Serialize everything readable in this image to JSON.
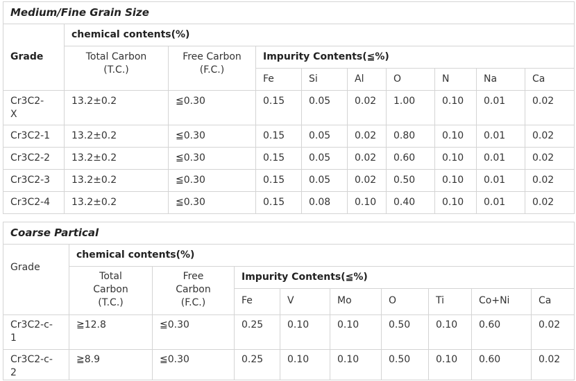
{
  "table1": {
    "title": "Medium/Fine Grain Size",
    "grade_header": "Grade",
    "chem_header": "chemical contents(%)",
    "tc_header": "Total Carbon\n(T.C.)",
    "fc_header": "Free Carbon\n(F.C.)",
    "impurity_header": "Impurity Contents(≦%)",
    "elements": [
      "Fe",
      "Si",
      "Al",
      "O",
      "N",
      "Na",
      "Ca"
    ],
    "rows": [
      {
        "grade": "Cr3C2-\nX",
        "tc": "13.2±0.2",
        "fc": "≦0.30",
        "vals": [
          "0.15",
          "0.05",
          "0.02",
          "1.00",
          "0.10",
          "0.01",
          "0.02"
        ]
      },
      {
        "grade": "Cr3C2-1",
        "tc": "13.2±0.2",
        "fc": "≦0.30",
        "vals": [
          "0.15",
          "0.05",
          "0.02",
          "0.80",
          "0.10",
          "0.01",
          "0.02"
        ]
      },
      {
        "grade": "Cr3C2-2",
        "tc": "13.2±0.2",
        "fc": "≦0.30",
        "vals": [
          "0.15",
          "0.05",
          "0.02",
          "0.60",
          "0.10",
          "0.01",
          "0.02"
        ]
      },
      {
        "grade": "Cr3C2-3",
        "tc": "13.2±0.2",
        "fc": "≦0.30",
        "vals": [
          "0.15",
          "0.05",
          "0.02",
          "0.50",
          "0.10",
          "0.01",
          "0.02"
        ]
      },
      {
        "grade": "Cr3C2-4",
        "tc": "13.2±0.2",
        "fc": "≦0.30",
        "vals": [
          "0.15",
          "0.08",
          "0.10",
          "0.40",
          "0.10",
          "0.01",
          "0.02"
        ]
      }
    ]
  },
  "table2": {
    "title": "Coarse Partical",
    "grade_header": "Grade",
    "chem_header": "chemical contents(%)",
    "tc_header": "Total\nCarbon\n(T.C.)",
    "fc_header": "Free\nCarbon\n(F.C.)",
    "impurity_header": "Impurity Contents(≦%)",
    "elements": [
      "Fe",
      "V",
      "Mo",
      "O",
      "Ti",
      "Co+Ni",
      "Ca"
    ],
    "rows": [
      {
        "grade": "Cr3C2-c-\n1",
        "tc": "≧12.8",
        "fc": "≦0.30",
        "vals": [
          "0.25",
          "0.10",
          "0.10",
          "0.50",
          "0.10",
          "0.60",
          "0.02"
        ]
      },
      {
        "grade": "Cr3C2-c-\n2",
        "tc": "≧8.9",
        "fc": "≦0.30",
        "vals": [
          "0.25",
          "0.10",
          "0.10",
          "0.50",
          "0.10",
          "0.60",
          "0.02"
        ]
      }
    ]
  }
}
